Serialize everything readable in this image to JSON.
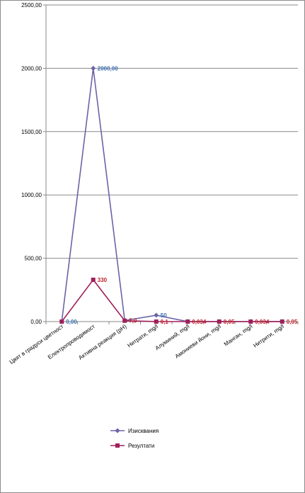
{
  "chart_data": {
    "type": "line",
    "categories": [
      "Цвят в градуси цветност",
      "Електропроводимост",
      "Активна реакция (pH)",
      "Нитрати,  mg/l",
      "Алуминий, mg/l",
      "Амониеви йони, mg/l",
      "Манган, mg/l",
      "Нитрити, mg/l"
    ],
    "ylim": [
      0,
      2500
    ],
    "yticks": [
      "0,00",
      "500,00",
      "1000,00",
      "1500,00",
      "2000,00",
      "2500,00"
    ],
    "ytick_values": [
      0,
      500,
      1000,
      1500,
      2000,
      2500
    ],
    "gridlines": true,
    "legend_position": "bottom",
    "series": [
      {
        "name": "Изисквания",
        "color": "#6b63a6",
        "marker": "diamond",
        "values": [
          0,
          2000,
          8.5,
          50,
          0.2,
          0.5,
          0.05,
          0.5
        ],
        "labels": [
          "0,00",
          "2000,00",
          "",
          "50",
          "",
          "",
          "",
          ""
        ]
      },
      {
        "name": "Резултати",
        "color": "#a0205a",
        "marker": "square",
        "values": [
          0,
          330,
          7,
          0.1,
          0.034,
          0.05,
          0.034,
          0.05
        ],
        "labels": [
          "",
          "330",
          "7,0",
          "0,1",
          "0,034",
          "0,05",
          "0,034",
          "0,05"
        ]
      }
    ]
  }
}
